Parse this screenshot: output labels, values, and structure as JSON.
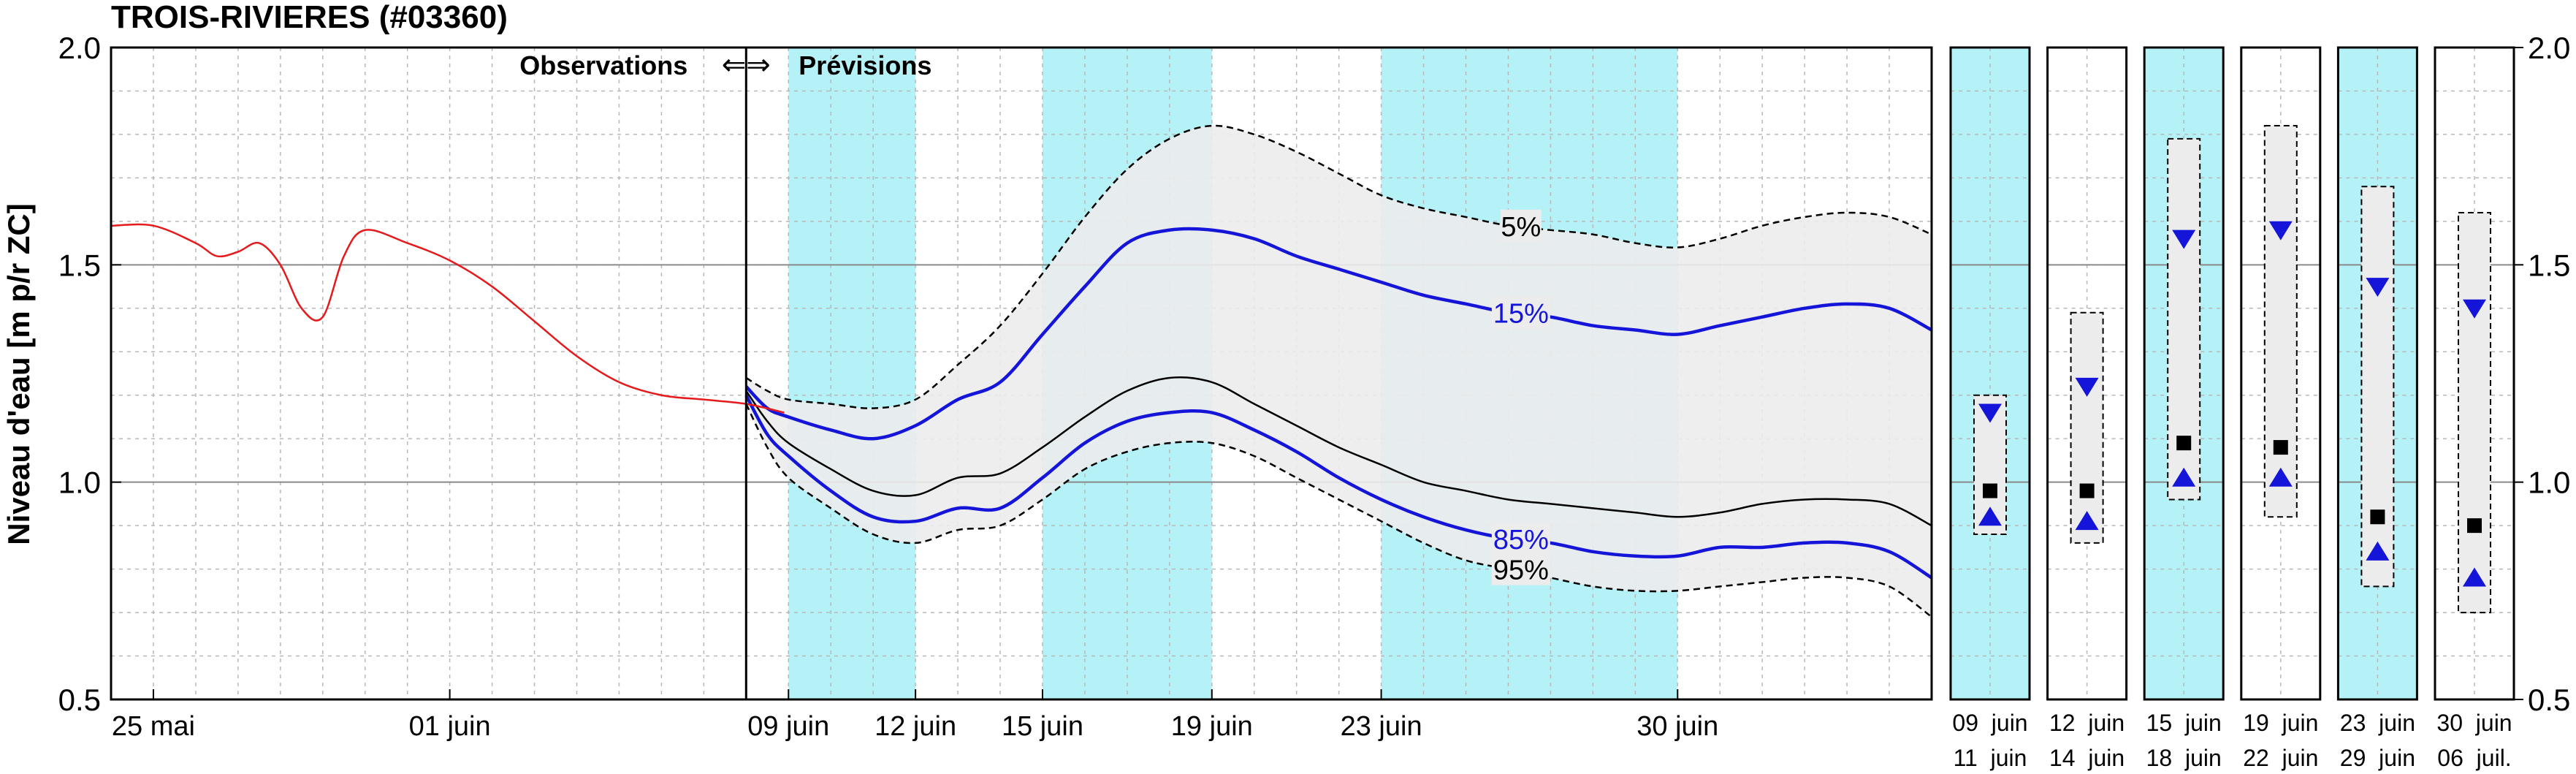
{
  "chart_data": {
    "type": "line",
    "title": "TROIS-RIVIERES (#03360)",
    "ylabel": "Niveau d'eau [m p/r ZC]",
    "ylim": [
      0.5,
      2.0
    ],
    "y_ticks": [
      0.5,
      1.0,
      1.5,
      2.0
    ],
    "y_tick_labels": [
      "0.5",
      "1.0",
      "1.5",
      "2.0"
    ],
    "grid": true,
    "annotation_left": "Observations",
    "annotation_arrows": "⇐⇒",
    "annotation_right": "Prévisions",
    "x_tick_labels": [
      {
        "day": 0,
        "label": "25 mai"
      },
      {
        "day": 7,
        "label": "01 juin"
      },
      {
        "day": 15,
        "label": "09 juin"
      },
      {
        "day": 18,
        "label": "12 juin"
      },
      {
        "day": 21,
        "label": "15 juin"
      },
      {
        "day": 25,
        "label": "19 juin"
      },
      {
        "day": 29,
        "label": "23 juin"
      },
      {
        "day": 36,
        "label": "30 juin"
      }
    ],
    "observation_end_day": 14,
    "highlight_periods": [
      [
        15,
        18
      ],
      [
        21,
        25
      ],
      [
        29,
        36
      ]
    ],
    "observed": {
      "color": "#e41a1c",
      "x": [
        -1,
        0,
        1,
        1.5,
        2,
        2.5,
        3,
        3.5,
        4,
        4.5,
        5,
        6,
        7,
        8,
        9,
        10,
        11,
        12,
        13,
        14,
        14.9
      ],
      "y": [
        1.59,
        1.59,
        1.55,
        1.52,
        1.53,
        1.55,
        1.5,
        1.4,
        1.38,
        1.52,
        1.58,
        1.55,
        1.51,
        1.45,
        1.37,
        1.29,
        1.23,
        1.2,
        1.19,
        1.18,
        1.16
      ]
    },
    "series": [
      {
        "name": "5%",
        "style": "dashed",
        "color": "#000000",
        "x": [
          14,
          14.5,
          15,
          16,
          17,
          18,
          19,
          20,
          21,
          22,
          23,
          24,
          25,
          26,
          27,
          28,
          29,
          30,
          31,
          32,
          33,
          34,
          35,
          36,
          37,
          38,
          39,
          40,
          41,
          42
        ],
        "y": [
          1.24,
          1.21,
          1.19,
          1.18,
          1.17,
          1.19,
          1.27,
          1.36,
          1.48,
          1.61,
          1.72,
          1.79,
          1.82,
          1.8,
          1.76,
          1.71,
          1.66,
          1.63,
          1.61,
          1.59,
          1.58,
          1.57,
          1.55,
          1.54,
          1.56,
          1.59,
          1.61,
          1.62,
          1.61,
          1.57
        ]
      },
      {
        "name": "15%",
        "style": "solid",
        "color": "#1515d9",
        "x": [
          14,
          14.5,
          15,
          16,
          17,
          18,
          19,
          20,
          21,
          22,
          23,
          24,
          25,
          26,
          27,
          28,
          29,
          30,
          31,
          32,
          33,
          34,
          35,
          36,
          37,
          38,
          39,
          40,
          41,
          42
        ],
        "y": [
          1.22,
          1.17,
          1.15,
          1.12,
          1.1,
          1.13,
          1.19,
          1.23,
          1.34,
          1.45,
          1.55,
          1.58,
          1.58,
          1.56,
          1.52,
          1.49,
          1.46,
          1.43,
          1.41,
          1.39,
          1.38,
          1.36,
          1.35,
          1.34,
          1.36,
          1.38,
          1.4,
          1.41,
          1.4,
          1.35
        ]
      },
      {
        "name": "",
        "style": "thin",
        "color": "#000000",
        "x": [
          14,
          14.5,
          15,
          16,
          17,
          18,
          19,
          20,
          21,
          22,
          23,
          24,
          25,
          26,
          27,
          28,
          29,
          30,
          31,
          32,
          33,
          34,
          35,
          36,
          37,
          38,
          39,
          40,
          41,
          42
        ],
        "y": [
          1.21,
          1.14,
          1.09,
          1.03,
          0.98,
          0.97,
          1.01,
          1.02,
          1.08,
          1.15,
          1.21,
          1.24,
          1.23,
          1.18,
          1.13,
          1.08,
          1.04,
          1.0,
          0.98,
          0.96,
          0.95,
          0.94,
          0.93,
          0.92,
          0.93,
          0.95,
          0.96,
          0.96,
          0.95,
          0.9
        ]
      },
      {
        "name": "85%",
        "style": "solid",
        "color": "#1515d9",
        "x": [
          14,
          14.5,
          15,
          16,
          17,
          18,
          19,
          20,
          21,
          22,
          23,
          24,
          25,
          26,
          27,
          28,
          29,
          30,
          31,
          32,
          33,
          34,
          35,
          36,
          37,
          38,
          39,
          40,
          41,
          42
        ],
        "y": [
          1.2,
          1.11,
          1.06,
          0.98,
          0.92,
          0.91,
          0.94,
          0.94,
          1.01,
          1.09,
          1.14,
          1.16,
          1.16,
          1.12,
          1.07,
          1.01,
          0.96,
          0.92,
          0.89,
          0.87,
          0.86,
          0.84,
          0.83,
          0.83,
          0.85,
          0.85,
          0.86,
          0.86,
          0.84,
          0.78
        ]
      },
      {
        "name": "95%",
        "style": "dashed",
        "color": "#000000",
        "x": [
          14,
          14.5,
          15,
          16,
          17,
          18,
          19,
          20,
          21,
          22,
          23,
          24,
          25,
          26,
          27,
          28,
          29,
          30,
          31,
          32,
          33,
          34,
          35,
          36,
          37,
          38,
          39,
          40,
          41,
          42
        ],
        "y": [
          1.18,
          1.08,
          1.01,
          0.94,
          0.88,
          0.86,
          0.89,
          0.9,
          0.96,
          1.03,
          1.07,
          1.09,
          1.09,
          1.06,
          1.01,
          0.96,
          0.91,
          0.86,
          0.82,
          0.8,
          0.78,
          0.76,
          0.75,
          0.75,
          0.76,
          0.77,
          0.78,
          0.78,
          0.76,
          0.69
        ]
      }
    ],
    "series_label_days": {
      "5%": 32.3,
      "15%": 32.3,
      "85%": 32.3,
      "95%": 32.3
    },
    "panels": [
      {
        "label_top": "09  juin",
        "label_bottom": "11  juin",
        "highlight": true,
        "range": [
          0.88,
          1.2
        ],
        "upper": 1.16,
        "mean": 0.98,
        "lower": 0.92
      },
      {
        "label_top": "12  juin",
        "label_bottom": "14  juin",
        "highlight": false,
        "range": [
          0.86,
          1.39
        ],
        "upper": 1.22,
        "mean": 0.98,
        "lower": 0.91
      },
      {
        "label_top": "15  juin",
        "label_bottom": "18  juin",
        "highlight": true,
        "range": [
          0.96,
          1.79
        ],
        "upper": 1.56,
        "mean": 1.09,
        "lower": 1.01
      },
      {
        "label_top": "19  juin",
        "label_bottom": "22  juin",
        "highlight": false,
        "range": [
          0.92,
          1.82
        ],
        "upper": 1.58,
        "mean": 1.08,
        "lower": 1.01
      },
      {
        "label_top": "23  juin",
        "label_bottom": "29  juin",
        "highlight": true,
        "range": [
          0.76,
          1.68
        ],
        "upper": 1.45,
        "mean": 0.92,
        "lower": 0.84
      },
      {
        "label_top": "30  juin",
        "label_bottom": "06  juil.",
        "highlight": false,
        "range": [
          0.7,
          1.62
        ],
        "upper": 1.4,
        "mean": 0.9,
        "lower": 0.78
      }
    ],
    "colors": {
      "highlight": "#b4f2f7",
      "band": "#ececec",
      "observed": "#e41a1c",
      "percentile": "#1515d9",
      "grid": "#b8b8b8"
    }
  }
}
